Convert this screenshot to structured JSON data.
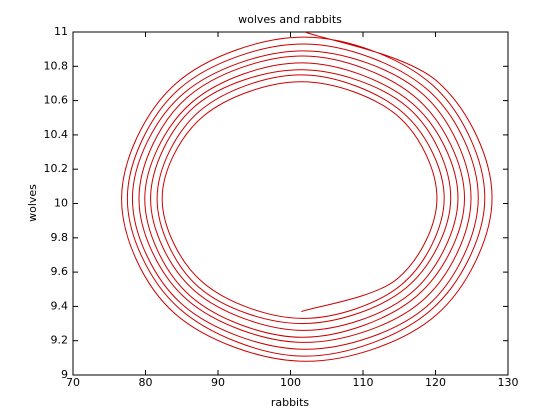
{
  "chart_data": {
    "type": "line",
    "title": "wolves and rabbits",
    "x_label": "rabbits",
    "y_label": "wolves",
    "color": "#cc0000",
    "xlim": [
      70,
      130
    ],
    "xticks": [
      70,
      80,
      90,
      100,
      110,
      120,
      130
    ],
    "ylim": [
      9,
      11
    ],
    "yticks": [
      9,
      9.2,
      9.4,
      9.6,
      9.8,
      10,
      10.2,
      10.4,
      10.6,
      10.8,
      11
    ],
    "x": [
      101.5,
      114.7,
      120.2,
      114.8,
      101.5,
      88.0,
      82.3,
      87.9,
      101.6,
      115.4,
      121.2,
      115.5,
      101.6,
      87.5,
      81.6,
      87.4,
      101.6,
      116.0,
      122.1,
      116.2,
      101.6,
      86.9,
      80.7,
      86.8,
      101.7,
      116.7,
      123.1,
      116.9,
      101.7,
      86.4,
      79.9,
      86.2,
      101.7,
      117.4,
      124.0,
      117.5,
      101.8,
      85.8,
      79.1,
      85.7,
      101.8,
      118.1,
      124.9,
      118.2,
      101.8,
      85.2,
      78.2,
      85.1,
      101.9,
      118.8,
      125.9,
      119.0,
      101.9,
      84.7,
      77.5,
      84.6,
      101.9,
      119.4,
      126.8,
      119.6,
      102.0,
      84.2,
      76.7,
      84.0,
      102.0,
      120.1,
      127.8,
      120.3,
      102.0
    ],
    "values": [
      9.37,
      9.56,
      10.03,
      10.51,
      10.71,
      10.51,
      10.03,
      9.54,
      9.33,
      9.53,
      10.03,
      10.53,
      10.75,
      10.54,
      10.03,
      9.51,
      9.3,
      9.51,
      10.03,
      10.56,
      10.78,
      10.57,
      10.03,
      9.49,
      9.26,
      9.48,
      10.03,
      10.58,
      10.82,
      10.59,
      10.03,
      9.46,
      9.22,
      9.46,
      10.03,
      10.61,
      10.86,
      10.62,
      10.03,
      9.44,
      9.19,
      9.43,
      10.03,
      10.64,
      10.89,
      10.64,
      10.03,
      9.41,
      9.15,
      9.4,
      10.03,
      10.66,
      10.93,
      10.67,
      10.03,
      9.39,
      9.11,
      9.38,
      10.03,
      10.69,
      10.97,
      10.7,
      10.03,
      9.36,
      9.08,
      9.35,
      10.03,
      10.71,
      11.0
    ]
  }
}
